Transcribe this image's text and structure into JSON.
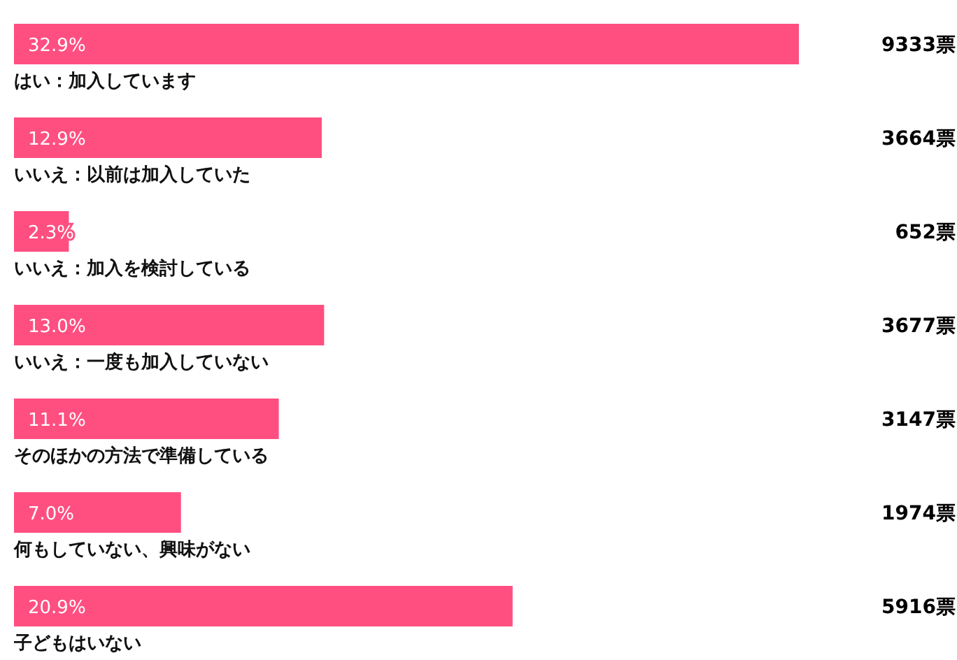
{
  "chart_data": {
    "type": "bar",
    "orientation": "horizontal",
    "categories": [
      "はい：加入しています",
      "いいえ：以前は加入していた",
      "いいえ：加入を検討している",
      "いいえ：一度も加入していない",
      "そのほかの方法で準備している",
      "何もしていない、興味がない",
      "子どもはいない"
    ],
    "values": [
      32.9,
      12.9,
      2.3,
      13.0,
      11.1,
      7.0,
      20.9
    ],
    "value_labels": [
      "32.9%",
      "12.9%",
      "2.3%",
      "13.0%",
      "11.1%",
      "7.0%",
      "20.9%"
    ],
    "color": "#ff4f80",
    "annotations": [
      "9333票",
      "3664票",
      "652票",
      "3677票",
      "3147票",
      "1974票",
      "5916票"
    ]
  }
}
